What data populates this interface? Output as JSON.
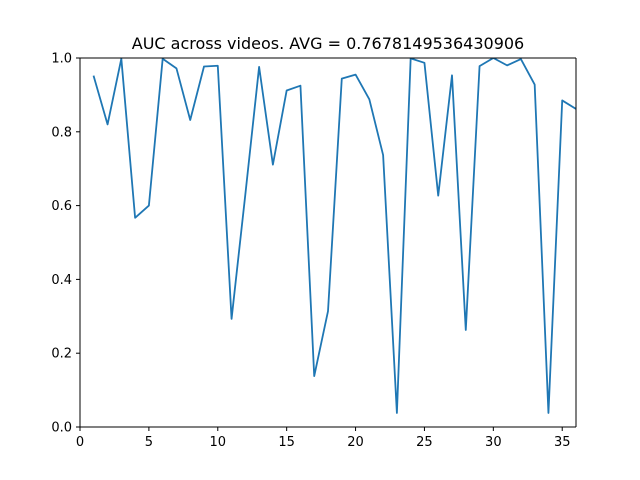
{
  "chart_data": {
    "type": "line",
    "title": "AUC across videos. AVG = 0.7678149536430906",
    "xlabel": "",
    "ylabel": "",
    "xlim": [
      0,
      36
    ],
    "ylim": [
      0.0,
      1.0
    ],
    "x_ticks": [
      0,
      5,
      10,
      15,
      20,
      25,
      30,
      35
    ],
    "x_tick_labels": [
      "0",
      "5",
      "10",
      "15",
      "20",
      "25",
      "30",
      "35"
    ],
    "y_ticks": [
      0.0,
      0.2,
      0.4,
      0.6,
      0.8,
      1.0
    ],
    "y_tick_labels": [
      "0.0",
      "0.2",
      "0.4",
      "0.6",
      "0.8",
      "1.0"
    ],
    "grid": false,
    "series": [
      {
        "color": "#1f77b4",
        "x": [
          1,
          2,
          3,
          4,
          5,
          6,
          7,
          8,
          9,
          10,
          11,
          12,
          13,
          14,
          15,
          16,
          17,
          18,
          19,
          20,
          21,
          22,
          23,
          24,
          25,
          26,
          27,
          28,
          29,
          30,
          31,
          32,
          33,
          34,
          35,
          36
        ],
        "values": [
          0.95,
          0.82,
          0.998,
          0.567,
          0.6,
          0.998,
          0.972,
          0.832,
          0.977,
          0.979,
          0.293,
          0.63,
          0.976,
          0.711,
          0.912,
          0.925,
          0.138,
          0.314,
          0.944,
          0.955,
          0.888,
          0.737,
          0.038,
          0.999,
          0.987,
          0.627,
          0.953,
          0.263,
          0.978,
          1.0,
          0.98,
          0.997,
          0.928,
          0.038,
          0.885,
          0.862
        ]
      }
    ]
  }
}
